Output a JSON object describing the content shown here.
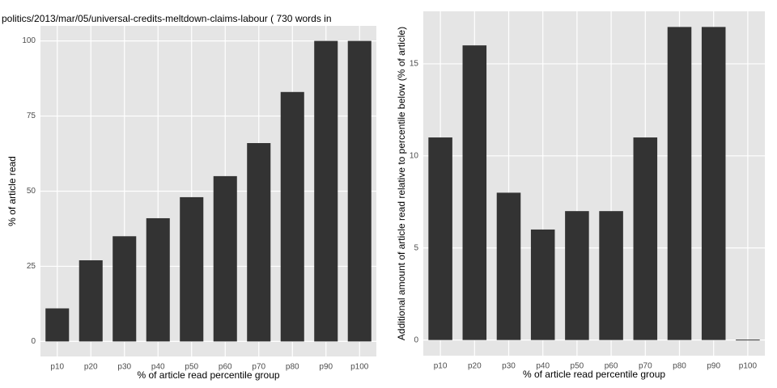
{
  "chart_data": [
    {
      "type": "bar",
      "title": "politics/2013/mar/05/universal-credits-meltdown-claims-labour ( 730 words in",
      "x_label": "% of article read percentile group",
      "y_label": "% of article read",
      "categories": [
        "p10",
        "p20",
        "p30",
        "p40",
        "p50",
        "p60",
        "p70",
        "p80",
        "p90",
        "p100"
      ],
      "values": [
        11,
        27,
        35,
        41,
        48,
        55,
        66,
        83,
        100,
        100
      ],
      "color": "#333333",
      "ylim": [
        -5,
        105
      ],
      "yticks": [
        0,
        25,
        50,
        75,
        100
      ],
      "grid": true
    },
    {
      "type": "bar",
      "x_label": "% of article read percentile group",
      "y_label": "Additional amount of article read relative to percentile below (% of article)",
      "categories": [
        "p10",
        "p20",
        "p30",
        "p40",
        "p50",
        "p60",
        "p70",
        "p80",
        "p90",
        "p100"
      ],
      "values": [
        11,
        16,
        8,
        6,
        7,
        7,
        11,
        17,
        17,
        0
      ],
      "color": "#333333",
      "ylim": [
        -0.85,
        17.85
      ],
      "yticks": [
        0,
        5,
        10,
        15
      ],
      "grid": true
    }
  ]
}
